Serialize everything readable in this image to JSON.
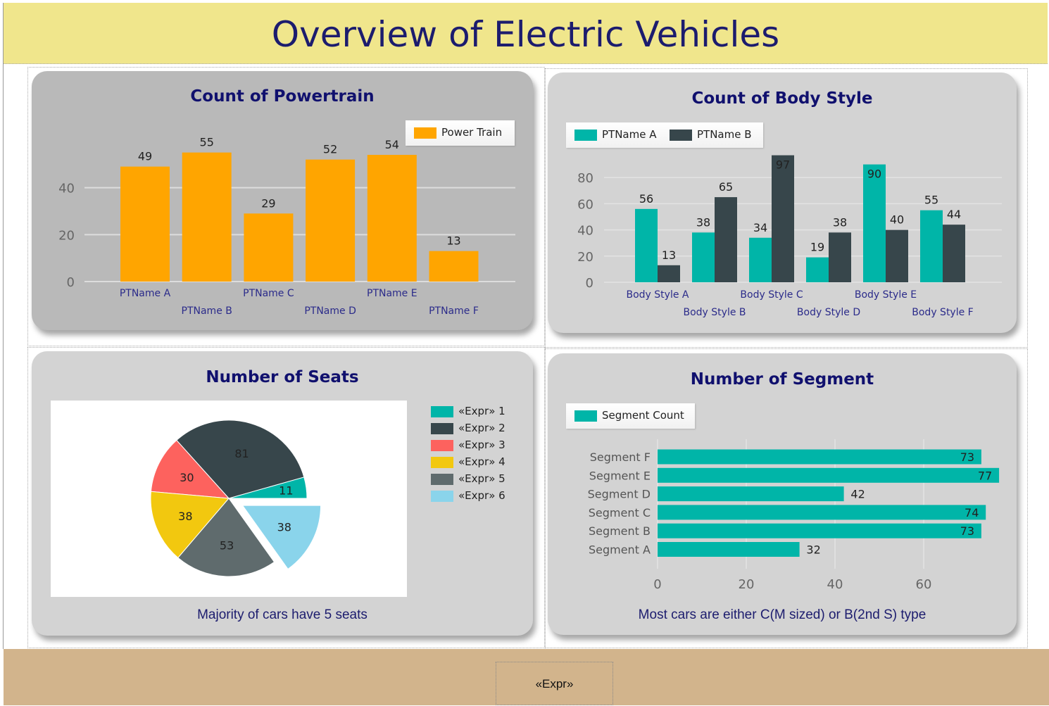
{
  "header": {
    "title": "Overview of Electric Vehicles"
  },
  "footer": {
    "expr": "«Expr»"
  },
  "colors": {
    "header_bg": "#f0e68c",
    "footer_bg": "#d2b48c",
    "orange": "#ffa500",
    "teal": "#00b5a8",
    "dark": "#37464b",
    "title": "#10106e"
  },
  "powertrain": {
    "title": "Count of Powertrain",
    "legend": [
      "Power Train"
    ],
    "chart_data": {
      "type": "bar",
      "title": "Count of Powertrain",
      "categories": [
        "PTName A",
        "PTName B",
        "PTName C",
        "PTName D",
        "PTName E",
        "PTName F"
      ],
      "series": [
        {
          "name": "Power Train",
          "values": [
            49,
            55,
            29,
            52,
            54,
            13
          ]
        }
      ],
      "yticks": [
        "0",
        "20",
        "40"
      ],
      "ylim": [
        0,
        60
      ],
      "grid": true,
      "legend_position": "top-right"
    }
  },
  "bodystyle": {
    "title": "Count of Body Style",
    "legend": [
      "PTName A",
      "PTName B"
    ],
    "chart_data": {
      "type": "bar",
      "title": "Count of Body Style",
      "categories": [
        "Body Style A",
        "Body Style B",
        "Body Style C",
        "Body Style D",
        "Body Style E",
        "Body Style F"
      ],
      "series": [
        {
          "name": "PTName A",
          "values": [
            56,
            38,
            34,
            19,
            90,
            55
          ]
        },
        {
          "name": "PTName B",
          "values": [
            13,
            65,
            97,
            38,
            40,
            44
          ]
        }
      ],
      "yticks": [
        "0",
        "20",
        "40",
        "60",
        "80"
      ],
      "ylim": [
        0,
        97
      ],
      "grid": true,
      "legend_position": "top-left"
    }
  },
  "seats": {
    "title": "Number of Seats",
    "caption": "Majority of cars have 5 seats",
    "chart_data": {
      "type": "pie",
      "title": "Number of Seats",
      "labels": [
        "«Expr» 1",
        "«Expr» 2",
        "«Expr» 3",
        "«Expr» 4",
        "«Expr» 5",
        "«Expr» 6"
      ],
      "values": [
        11,
        81,
        30,
        38,
        53,
        38
      ],
      "colors": [
        "#00b5a8",
        "#37464b",
        "#fd625e",
        "#f2c80f",
        "#5f6b6d",
        "#8ad4eb"
      ],
      "exploded": [
        "«Expr» 6"
      ],
      "legend_position": "right"
    }
  },
  "segment": {
    "title": "Number of Segment",
    "caption": "Most cars are either C(M sized) or B(2nd S) type",
    "legend": [
      "Segment Count"
    ],
    "chart_data": {
      "type": "bar",
      "orientation": "horizontal",
      "title": "Number of Segment",
      "categories": [
        "Segment F",
        "Segment E",
        "Segment D",
        "Segment C",
        "Segment B",
        "Segment A"
      ],
      "series": [
        {
          "name": "Segment Count",
          "values": [
            73,
            77,
            42,
            74,
            73,
            32
          ]
        }
      ],
      "xticks": [
        "0",
        "20",
        "40",
        "60"
      ],
      "xlim": [
        0,
        77
      ],
      "grid": true,
      "legend_position": "top-left"
    }
  }
}
